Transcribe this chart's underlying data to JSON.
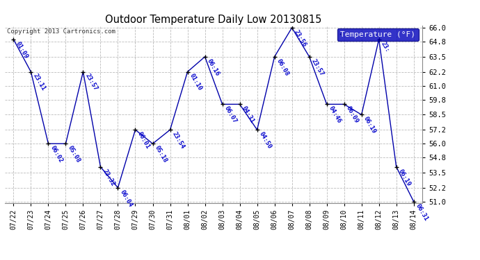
{
  "title": "Outdoor Temperature Daily Low 20130815",
  "copyright_text": "Copyright 2013 Cartronics.com",
  "legend_label": "Temperature (°F)",
  "dates": [
    "07/22",
    "07/23",
    "07/24",
    "07/25",
    "07/26",
    "07/27",
    "07/28",
    "07/29",
    "07/30",
    "07/31",
    "08/01",
    "08/02",
    "08/03",
    "08/04",
    "08/05",
    "08/06",
    "08/07",
    "08/08",
    "08/09",
    "08/10",
    "08/11",
    "08/12",
    "08/13",
    "08/14"
  ],
  "temps": [
    65.0,
    62.2,
    56.0,
    56.0,
    62.2,
    54.0,
    52.2,
    57.2,
    56.0,
    57.2,
    62.2,
    63.5,
    59.4,
    59.4,
    57.2,
    63.5,
    66.0,
    63.5,
    59.4,
    59.4,
    58.5,
    65.0,
    54.0,
    51.0
  ],
  "times": [
    "01:09",
    "23:11",
    "06:02",
    "05:08",
    "23:57",
    "23:32",
    "06:04",
    "06:01",
    "05:18",
    "23:54",
    "01:10",
    "06:16",
    "06:07",
    "04:31",
    "04:50",
    "06:08",
    "23:56",
    "23:57",
    "04:46",
    "06:09",
    "06:19",
    "23:",
    "06:19",
    "06:31"
  ],
  "ylim_min": 51.0,
  "ylim_max": 66.0,
  "line_color": "#0000aa",
  "marker_color": "#000000",
  "grid_color": "#bbbbbb",
  "bg_color": "#ffffff",
  "label_color": "#0000cc",
  "legend_bg_color": "#0000bb",
  "legend_text_color": "#ffffff",
  "yticks": [
    51.0,
    52.2,
    53.5,
    54.8,
    56.0,
    57.2,
    58.5,
    59.8,
    61.0,
    62.2,
    63.5,
    64.8,
    66.0
  ]
}
